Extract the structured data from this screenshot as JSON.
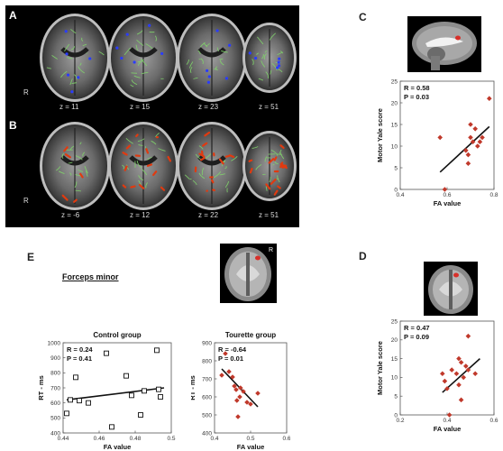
{
  "panel_labels": {
    "A": "A",
    "B": "B",
    "C": "C",
    "D": "D",
    "E": "E"
  },
  "row_a": {
    "slices": [
      "z = 11",
      "z = 15",
      "z = 23",
      "z = 51"
    ],
    "orientation": "R"
  },
  "row_b": {
    "slices": [
      "z = -6",
      "z = 12",
      "z = 22",
      "z = 51"
    ],
    "orientation": "R"
  },
  "panel_e": {
    "tract_label": "Forceps minor",
    "orientation": "R"
  },
  "colors": {
    "skeleton": "#7fd36a",
    "blue_clusters": "#2a3cff",
    "red_clusters": "#e03a10",
    "markers": "#c0392b"
  },
  "chart_data": [
    {
      "id": "panel-c",
      "type": "scatter",
      "xlabel": "FA value",
      "ylabel": "Motor Yale score",
      "xlim": [
        0.4,
        0.8
      ],
      "ylim": [
        0,
        25
      ],
      "xticks": [
        "0.4",
        "0.6",
        "0.8"
      ],
      "yticks": [
        "0",
        "5",
        "10",
        "15",
        "20",
        "25"
      ],
      "annotations": [
        "R = 0.58",
        "P = 0.03"
      ],
      "points": [
        {
          "x": 0.57,
          "y": 12
        },
        {
          "x": 0.59,
          "y": 0
        },
        {
          "x": 0.68,
          "y": 9
        },
        {
          "x": 0.69,
          "y": 6
        },
        {
          "x": 0.69,
          "y": 8
        },
        {
          "x": 0.7,
          "y": 12
        },
        {
          "x": 0.7,
          "y": 15
        },
        {
          "x": 0.71,
          "y": 11
        },
        {
          "x": 0.72,
          "y": 14
        },
        {
          "x": 0.73,
          "y": 10
        },
        {
          "x": 0.74,
          "y": 11
        },
        {
          "x": 0.75,
          "y": 12
        },
        {
          "x": 0.78,
          "y": 21
        }
      ],
      "fit": [
        {
          "x": 0.57,
          "y": 4
        },
        {
          "x": 0.78,
          "y": 14.5
        }
      ]
    },
    {
      "id": "panel-e-control",
      "type": "scatter",
      "title": "Control group",
      "xlabel": "FA value",
      "ylabel": "RT - ms",
      "xlim": [
        0.44,
        0.5
      ],
      "ylim": [
        400,
        1000
      ],
      "xticks": [
        "0.44",
        "0.46",
        "0.48",
        "0.5"
      ],
      "yticks": [
        "400",
        "500",
        "600",
        "700",
        "800",
        "900",
        "1000"
      ],
      "annotations": [
        "R = 0.24",
        "P = 0.41"
      ],
      "points": [
        {
          "x": 0.442,
          "y": 530
        },
        {
          "x": 0.444,
          "y": 620
        },
        {
          "x": 0.447,
          "y": 770
        },
        {
          "x": 0.449,
          "y": 615
        },
        {
          "x": 0.454,
          "y": 600
        },
        {
          "x": 0.464,
          "y": 930
        },
        {
          "x": 0.467,
          "y": 440
        },
        {
          "x": 0.475,
          "y": 780
        },
        {
          "x": 0.478,
          "y": 650
        },
        {
          "x": 0.483,
          "y": 520
        },
        {
          "x": 0.485,
          "y": 680
        },
        {
          "x": 0.492,
          "y": 950
        },
        {
          "x": 0.493,
          "y": 690
        },
        {
          "x": 0.494,
          "y": 640
        }
      ],
      "fit": [
        {
          "x": 0.442,
          "y": 620
        },
        {
          "x": 0.496,
          "y": 700
        }
      ]
    },
    {
      "id": "panel-e-tourette",
      "type": "scatter",
      "title": "Tourette group",
      "xlabel": "FA value",
      "ylabel": "RT - ms",
      "xlim": [
        0.4,
        0.6
      ],
      "ylim": [
        400,
        900
      ],
      "xticks": [
        "0.4",
        "0.5",
        "0.6"
      ],
      "yticks": [
        "400",
        "500",
        "600",
        "700",
        "800",
        "900"
      ],
      "annotations": [
        "R = -0.64",
        "P = 0.01"
      ],
      "points": [
        {
          "x": 0.42,
          "y": 720
        },
        {
          "x": 0.43,
          "y": 840
        },
        {
          "x": 0.44,
          "y": 740
        },
        {
          "x": 0.45,
          "y": 710
        },
        {
          "x": 0.455,
          "y": 660
        },
        {
          "x": 0.46,
          "y": 640
        },
        {
          "x": 0.462,
          "y": 580
        },
        {
          "x": 0.465,
          "y": 490
        },
        {
          "x": 0.47,
          "y": 600
        },
        {
          "x": 0.472,
          "y": 650
        },
        {
          "x": 0.48,
          "y": 630
        },
        {
          "x": 0.49,
          "y": 570
        },
        {
          "x": 0.5,
          "y": 560
        },
        {
          "x": 0.52,
          "y": 620
        }
      ],
      "fit": [
        {
          "x": 0.42,
          "y": 755
        },
        {
          "x": 0.52,
          "y": 545
        }
      ]
    },
    {
      "id": "panel-d",
      "type": "scatter",
      "xlabel": "FA value",
      "ylabel": "Motor Yale score",
      "xlim": [
        0.2,
        0.6
      ],
      "ylim": [
        0,
        25
      ],
      "xticks": [
        "0.2",
        "0.4",
        "0.6"
      ],
      "yticks": [
        "0",
        "5",
        "10",
        "15",
        "20",
        "25"
      ],
      "annotations": [
        "R = 0.47",
        "P = 0.09"
      ],
      "points": [
        {
          "x": 0.38,
          "y": 11
        },
        {
          "x": 0.39,
          "y": 9
        },
        {
          "x": 0.4,
          "y": 7
        },
        {
          "x": 0.41,
          "y": 0
        },
        {
          "x": 0.42,
          "y": 12
        },
        {
          "x": 0.44,
          "y": 11
        },
        {
          "x": 0.45,
          "y": 8
        },
        {
          "x": 0.45,
          "y": 15
        },
        {
          "x": 0.46,
          "y": 4
        },
        {
          "x": 0.46,
          "y": 14
        },
        {
          "x": 0.47,
          "y": 10
        },
        {
          "x": 0.48,
          "y": 13
        },
        {
          "x": 0.49,
          "y": 12
        },
        {
          "x": 0.49,
          "y": 21
        },
        {
          "x": 0.52,
          "y": 11
        }
      ],
      "fit": [
        {
          "x": 0.38,
          "y": 6
        },
        {
          "x": 0.54,
          "y": 15
        }
      ]
    }
  ]
}
